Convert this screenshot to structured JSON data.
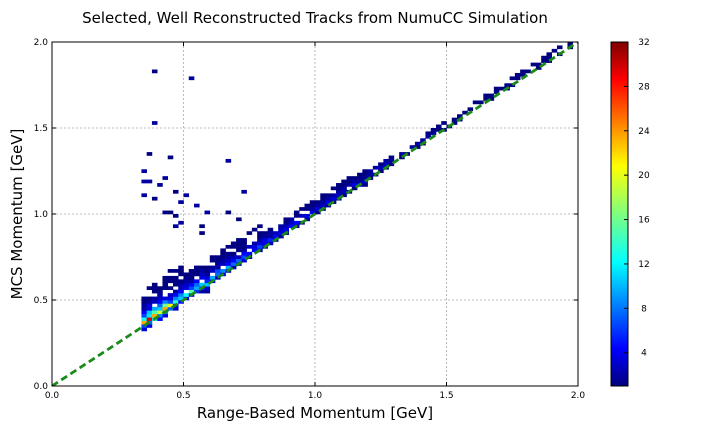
{
  "chart_data": {
    "type": "heatmap",
    "title": "Selected, Well Reconstructed Tracks from NumuCC Simulation",
    "xlabel": "Range-Based Momentum [GeV]",
    "ylabel": "MCS Momentum [GeV]",
    "xlim": [
      0.0,
      2.0
    ],
    "ylim": [
      0.0,
      2.0
    ],
    "x_ticks": [
      "0.0",
      "0.5",
      "1.0",
      "1.5",
      "2.0"
    ],
    "y_ticks": [
      "0.0",
      "0.5",
      "1.0",
      "1.5",
      "2.0"
    ],
    "grid": true,
    "bins": 100,
    "bin_width_gev": 0.02,
    "colormap": "jet",
    "colorbar": {
      "range": [
        1,
        32
      ],
      "ticks": [
        "4",
        "8",
        "12",
        "16",
        "20",
        "24",
        "28",
        "32"
      ]
    },
    "reference_line": {
      "from": [
        0.0,
        0.0
      ],
      "to": [
        2.0,
        2.0
      ],
      "color": "#1a8a1a",
      "style": "dashed"
    },
    "ridge_counts": [
      {
        "x": 0.34,
        "y": 0.34,
        "count": 18
      },
      {
        "x": 0.36,
        "y": 0.34,
        "count": 32
      },
      {
        "x": 0.38,
        "y": 0.38,
        "count": 26
      },
      {
        "x": 0.4,
        "y": 0.4,
        "count": 24
      },
      {
        "x": 0.42,
        "y": 0.42,
        "count": 28
      },
      {
        "x": 0.44,
        "y": 0.44,
        "count": 20
      },
      {
        "x": 0.46,
        "y": 0.46,
        "count": 16
      },
      {
        "x": 0.48,
        "y": 0.48,
        "count": 14
      },
      {
        "x": 0.52,
        "y": 0.52,
        "count": 14
      },
      {
        "x": 0.58,
        "y": 0.58,
        "count": 12
      },
      {
        "x": 0.64,
        "y": 0.64,
        "count": 10
      },
      {
        "x": 0.72,
        "y": 0.72,
        "count": 8
      },
      {
        "x": 0.8,
        "y": 0.8,
        "count": 6
      },
      {
        "x": 0.88,
        "y": 0.88,
        "count": 5
      },
      {
        "x": 1.0,
        "y": 1.0,
        "count": 4
      },
      {
        "x": 1.2,
        "y": 1.2,
        "count": 3
      },
      {
        "x": 1.4,
        "y": 1.4,
        "count": 2
      },
      {
        "x": 1.62,
        "y": 1.62,
        "count": 1
      },
      {
        "x": 1.84,
        "y": 1.86,
        "count": 1
      }
    ]
  }
}
